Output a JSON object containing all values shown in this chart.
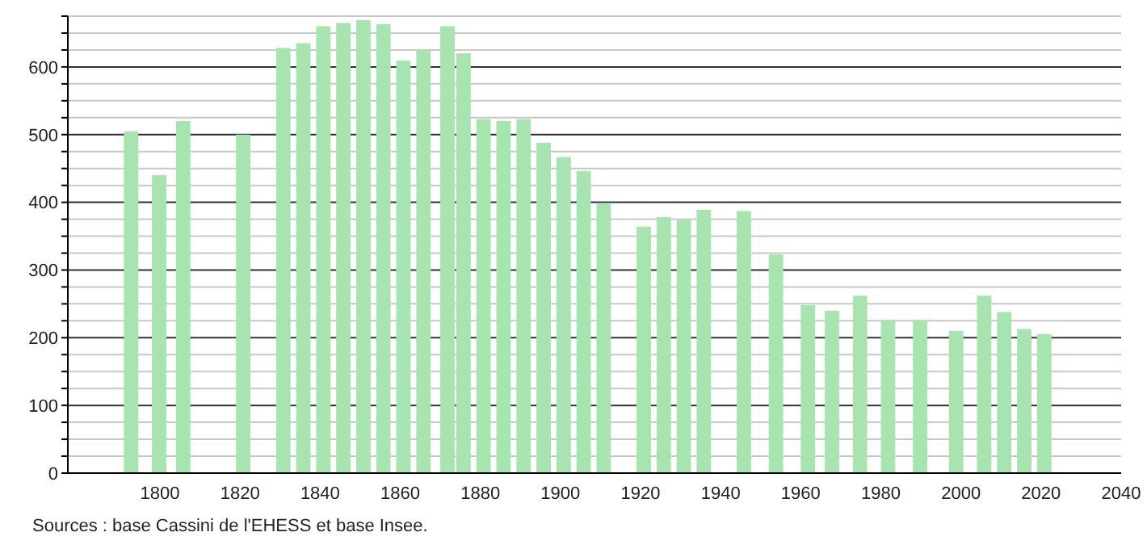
{
  "chart_data": {
    "type": "bar",
    "x": [
      1793,
      1800,
      1806,
      1821,
      1831,
      1836,
      1841,
      1846,
      1851,
      1856,
      1861,
      1866,
      1872,
      1876,
      1881,
      1886,
      1891,
      1896,
      1901,
      1906,
      1911,
      1921,
      1926,
      1931,
      1936,
      1946,
      1954,
      1962,
      1968,
      1975,
      1982,
      1990,
      1999,
      2006,
      2011,
      2016,
      2021
    ],
    "values": [
      505,
      440,
      520,
      500,
      628,
      635,
      660,
      665,
      669,
      663,
      609,
      625,
      660,
      620,
      523,
      520,
      523,
      488,
      467,
      446,
      399,
      364,
      378,
      374,
      389,
      387,
      323,
      248,
      240,
      262,
      226,
      226,
      210,
      262,
      238,
      213,
      205
    ],
    "color": "#a8e4b0",
    "xlim": [
      1777,
      2040
    ],
    "xticks": [
      1800,
      1820,
      1840,
      1860,
      1880,
      1900,
      1920,
      1940,
      1960,
      1980,
      2000,
      2020,
      2040
    ],
    "ylim": [
      0,
      675
    ],
    "yticks": [
      0,
      {
        "value": 25,
        "label": null
      },
      {
        "value": 50,
        "label": null
      },
      {
        "value": 75,
        "label": null
      },
      100,
      {
        "value": 125,
        "label": null
      },
      {
        "value": 150,
        "label": null
      },
      {
        "value": 175,
        "label": null
      },
      200,
      {
        "value": 225,
        "label": null
      },
      {
        "value": 250,
        "label": null
      },
      {
        "value": 275,
        "label": null
      },
      300,
      {
        "value": 325,
        "label": null
      },
      {
        "value": 350,
        "label": null
      },
      {
        "value": 375,
        "label": null
      },
      400,
      {
        "value": 425,
        "label": null
      },
      {
        "value": 450,
        "label": null
      },
      {
        "value": 475,
        "label": null
      },
      500,
      {
        "value": 525,
        "label": null
      },
      {
        "value": 550,
        "label": null
      },
      {
        "value": 575,
        "label": null
      },
      600,
      {
        "value": 625,
        "label": null
      },
      {
        "value": 650,
        "label": null
      },
      {
        "value": 675,
        "label": null
      }
    ],
    "grid": "y",
    "annotations": [
      "Sources : base Cassini de l'EHESS et base Insee."
    ]
  }
}
